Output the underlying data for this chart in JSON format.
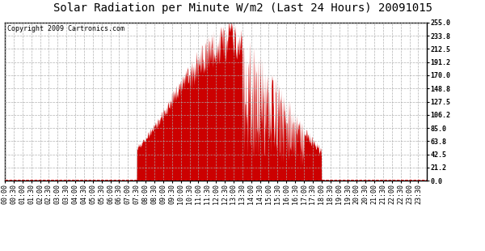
{
  "title": "Solar Radiation per Minute W/m2 (Last 24 Hours) 20091015",
  "copyright": "Copyright 2009 Cartronics.com",
  "yticks": [
    0.0,
    21.2,
    42.5,
    63.8,
    85.0,
    106.2,
    127.5,
    148.8,
    170.0,
    191.2,
    212.5,
    233.8,
    255.0
  ],
  "ymin": 0.0,
  "ymax": 255.0,
  "bar_color": "#cc0000",
  "background_color": "#ffffff",
  "grid_color": "#aaaaaa",
  "dashed_line_color": "#dd0000",
  "title_fontsize": 10,
  "copyright_fontsize": 6,
  "tick_fontsize": 6,
  "rise_hour": 7.5,
  "set_hour": 18.0,
  "peak_hour": 12.83
}
